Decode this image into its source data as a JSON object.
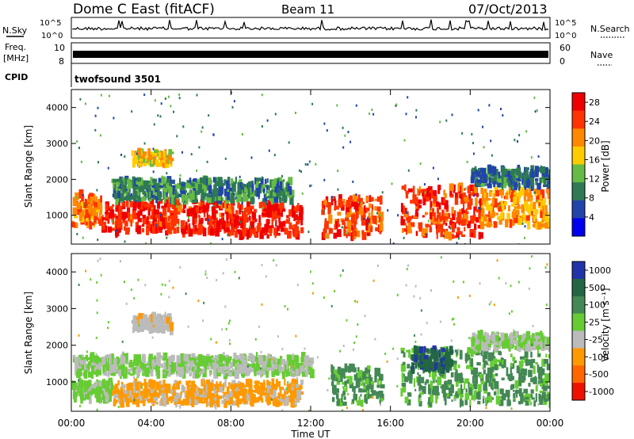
{
  "header": {
    "station": "Dome C East (fitACF)",
    "beam": "Beam 11",
    "date": "07/Oct/2013"
  },
  "noise_panel": {
    "left_label": "N.Sky",
    "left_ticks": [
      "10^5",
      "10^0"
    ],
    "right_label": "N.Search",
    "right_ticks": [
      "10^5",
      "10^0"
    ]
  },
  "freq_panel": {
    "left_label_1": "Freq.",
    "left_label_2": "[MHz]",
    "left_ticks": [
      "10",
      "8"
    ],
    "right_label": "Nave",
    "right_ticks": [
      "60",
      "0"
    ]
  },
  "cpid": {
    "label": "CPID",
    "value": "twofsound 3501"
  },
  "x_axis": {
    "label": "Time UT",
    "ticks": [
      "00:00",
      "04:00",
      "08:00",
      "12:00",
      "16:00",
      "20:00",
      "00:00"
    ]
  },
  "colors": {
    "power": [
      "#0000ee",
      "#2244aa",
      "#2e7a55",
      "#66bb44",
      "#ffcc00",
      "#ff8800",
      "#ff3300",
      "#ee0000"
    ],
    "velocity": [
      "#2233aa",
      "#226644",
      "#448855",
      "#66cc33",
      "#bbbbbb",
      "#ff9900",
      "#ff6600",
      "#ee1100"
    ]
  },
  "chart_data": [
    {
      "type": "heatmap",
      "title": "",
      "ylabel": "Slant Range [km]",
      "xlabel": "",
      "ylim": [
        200,
        4500
      ],
      "y_ticks": [
        "1000",
        "2000",
        "3000",
        "4000"
      ],
      "colorbar": {
        "label": "Power [dB]",
        "ticks": [
          "4",
          "8",
          "12",
          "16",
          "20",
          "24",
          "28"
        ],
        "range": [
          0,
          30
        ]
      },
      "bands": [
        {
          "t_start": 0.0,
          "t_end": 1.5,
          "r_low": 700,
          "r_high": 1600,
          "level": 22
        },
        {
          "t_start": 1.5,
          "t_end": 8.0,
          "r_low": 500,
          "r_high": 1400,
          "level": 26
        },
        {
          "t_start": 8.0,
          "t_end": 11.5,
          "r_low": 400,
          "r_high": 1300,
          "level": 27
        },
        {
          "t_start": 2.0,
          "t_end": 11.0,
          "r_low": 1400,
          "r_high": 2000,
          "level": 10
        },
        {
          "t_start": 3.0,
          "t_end": 5.0,
          "r_low": 2400,
          "r_high": 2800,
          "level": 18
        },
        {
          "t_start": 12.5,
          "t_end": 15.5,
          "r_low": 400,
          "r_high": 1500,
          "level": 24
        },
        {
          "t_start": 16.5,
          "t_end": 20.5,
          "r_low": 400,
          "r_high": 1800,
          "level": 25
        },
        {
          "t_start": 20.5,
          "t_end": 24.0,
          "r_low": 700,
          "r_high": 1700,
          "level": 20
        },
        {
          "t_start": 20.0,
          "t_end": 24.0,
          "r_low": 1800,
          "r_high": 2300,
          "level": 8
        }
      ]
    },
    {
      "type": "heatmap",
      "title": "",
      "ylabel": "Slant Range [km]",
      "xlabel": "Time UT",
      "ylim": [
        200,
        4500
      ],
      "y_ticks": [
        "1000",
        "2000",
        "3000",
        "4000"
      ],
      "colorbar": {
        "label": "Velocity [m s⁻¹]",
        "ticks": [
          "1000",
          "500",
          "100",
          "25",
          "-25",
          "-100",
          "-500",
          "-1000"
        ],
        "range": [
          -1000,
          1000
        ]
      },
      "bands": [
        {
          "t_start": 0.0,
          "t_end": 12.0,
          "r_low": 1200,
          "r_high": 1700,
          "level": 0
        },
        {
          "t_start": 0.0,
          "t_end": 2.0,
          "r_low": 500,
          "r_high": 1000,
          "level": 80
        },
        {
          "t_start": 2.0,
          "t_end": 11.5,
          "r_low": 400,
          "r_high": 1000,
          "level": -300
        },
        {
          "t_start": 3.0,
          "t_end": 5.0,
          "r_low": 2400,
          "r_high": 2800,
          "level": -150
        },
        {
          "t_start": 13.0,
          "t_end": 15.5,
          "r_low": 400,
          "r_high": 1400,
          "level": 300
        },
        {
          "t_start": 16.5,
          "t_end": 24.0,
          "r_low": 400,
          "r_high": 1900,
          "level": 300
        },
        {
          "t_start": 17.0,
          "t_end": 19.0,
          "r_low": 1300,
          "r_high": 1900,
          "level": 700
        },
        {
          "t_start": 20.0,
          "t_end": 24.0,
          "r_low": 1900,
          "r_high": 2300,
          "level": 0
        }
      ]
    }
  ]
}
